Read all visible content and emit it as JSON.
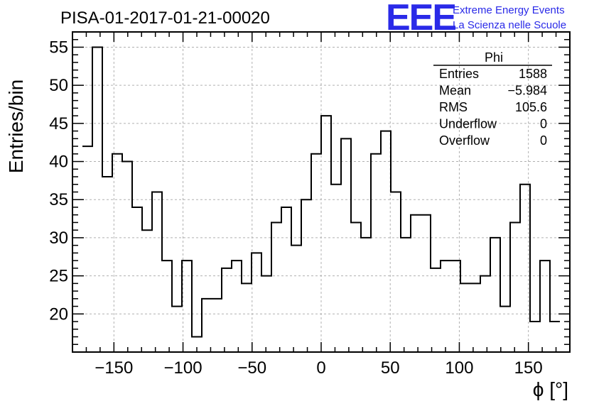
{
  "header": {
    "title": "PISA-01-2017-01-21-00020",
    "logo_text": "EEE",
    "tagline_1": "Extreme Energy Events",
    "tagline_2": "La Scienza nelle Scuole"
  },
  "stats_box": {
    "name": "Phi",
    "rows": [
      {
        "label": "Entries",
        "value": "1588"
      },
      {
        "label": "Mean",
        "value": "−5.984"
      },
      {
        "label": "RMS",
        "value": "105.6"
      },
      {
        "label": "Underflow",
        "value": "0"
      },
      {
        "label": "Overflow",
        "value": "0"
      }
    ]
  },
  "colors": {
    "logo": "#2a2ae8",
    "line": "#000000",
    "grid": "#b0b0b0"
  },
  "chart_data": {
    "type": "histogram",
    "xlabel": "ϕ [°]",
    "ylabel": "Entries/bin",
    "xlim": [
      -180,
      180
    ],
    "ylim": [
      15,
      57
    ],
    "grid": true,
    "bin_width": 7.2,
    "x_start": -172.8,
    "values": [
      42,
      55,
      38,
      41,
      40,
      34,
      31,
      36,
      27,
      21,
      27,
      17,
      22,
      22,
      26,
      27,
      24,
      28,
      25,
      32,
      34,
      29,
      35,
      41,
      46,
      37,
      43,
      32,
      30,
      41,
      44,
      36,
      30,
      33,
      33,
      26,
      27,
      27,
      24,
      24,
      25,
      30,
      21,
      32,
      37,
      19,
      27,
      19
    ],
    "xticks": [
      {
        "value": -150,
        "label": "−150"
      },
      {
        "value": -100,
        "label": "−100"
      },
      {
        "value": -50,
        "label": "−50"
      },
      {
        "value": 0,
        "label": "0"
      },
      {
        "value": 50,
        "label": "50"
      },
      {
        "value": 100,
        "label": "100"
      },
      {
        "value": 150,
        "label": "150"
      }
    ],
    "yticks": [
      {
        "value": 20,
        "label": "20"
      },
      {
        "value": 25,
        "label": "25"
      },
      {
        "value": 30,
        "label": "30"
      },
      {
        "value": 35,
        "label": "35"
      },
      {
        "value": 40,
        "label": "40"
      },
      {
        "value": 45,
        "label": "45"
      },
      {
        "value": 50,
        "label": "50"
      },
      {
        "value": 55,
        "label": "55"
      }
    ]
  }
}
